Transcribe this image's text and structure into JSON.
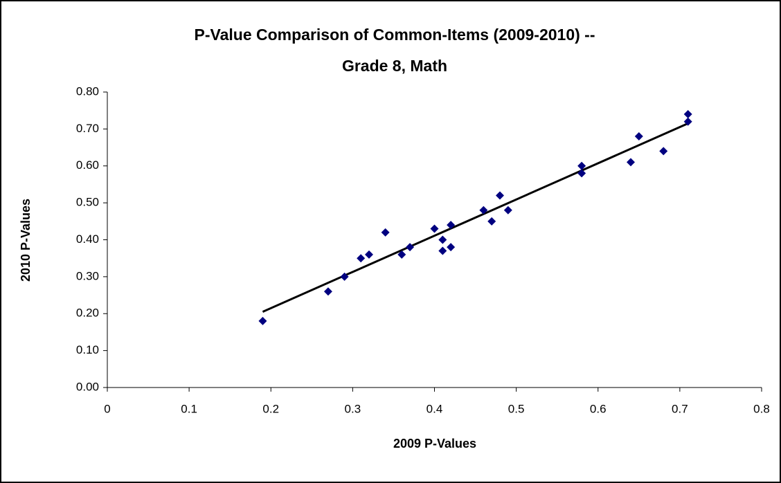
{
  "chart_data": {
    "type": "scatter",
    "title": "P-Value Comparison of Common-Items (2009-2010) --",
    "subtitle": "Grade 8, Math",
    "x_label": "2009 P-Values",
    "y_label": "2010 P-Values",
    "series": [
      {
        "color": "#000080",
        "x": [
          0.19,
          0.27,
          0.29,
          0.31,
          0.32,
          0.34,
          0.36,
          0.37,
          0.4,
          0.41,
          0.41,
          0.42,
          0.42,
          0.46,
          0.47,
          0.48,
          0.49,
          0.58,
          0.58,
          0.64,
          0.65,
          0.68,
          0.71,
          0.71
        ],
        "values": [
          0.18,
          0.26,
          0.3,
          0.35,
          0.36,
          0.42,
          0.36,
          0.38,
          0.43,
          0.4,
          0.37,
          0.44,
          0.38,
          0.48,
          0.45,
          0.52,
          0.48,
          0.6,
          0.58,
          0.61,
          0.68,
          0.64,
          0.74,
          0.72
        ]
      }
    ],
    "trendline": {
      "color": "#000000",
      "x": [
        0.19,
        0.71
      ],
      "values": [
        0.205,
        0.715
      ]
    },
    "xlim": [
      0,
      0.8
    ],
    "xticks": [
      0,
      0.1,
      0.2,
      0.3,
      0.4,
      0.5,
      0.6,
      0.7,
      0.8
    ],
    "ylim": [
      0,
      0.8
    ],
    "yticks": [
      {
        "value": 0,
        "label": "0.00"
      },
      {
        "value": 0.1,
        "label": "0.10"
      },
      {
        "value": 0.2,
        "label": "0.20"
      },
      {
        "value": 0.3,
        "label": "0.30"
      },
      {
        "value": 0.4,
        "label": "0.40"
      },
      {
        "value": 0.5,
        "label": "0.50"
      },
      {
        "value": 0.6,
        "label": "0.60"
      },
      {
        "value": 0.7,
        "label": "0.70"
      },
      {
        "value": 0.8,
        "label": "0.80"
      }
    ],
    "grid": false
  }
}
